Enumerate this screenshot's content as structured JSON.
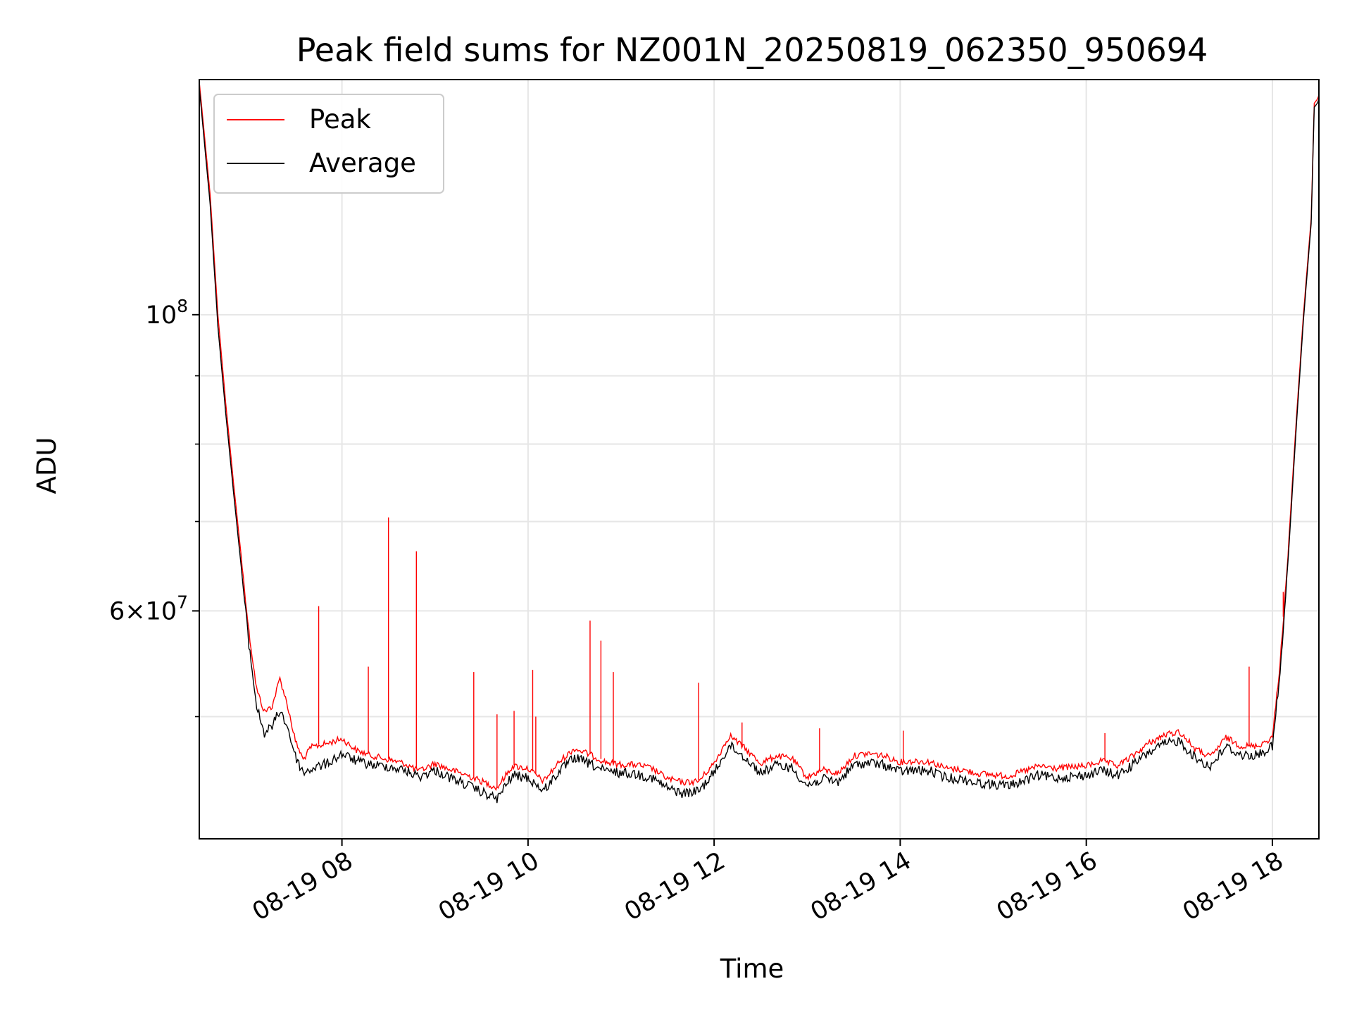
{
  "chart_data": {
    "type": "line",
    "title": "Peak field sums for NZ001N_20250819_062350_950694",
    "xlabel": "Time",
    "ylabel": "ADU",
    "y_scale": "log",
    "ylim": [
      40500000,
      150000000
    ],
    "xlim": [
      "2025-08-19 06:28",
      "2025-08-19 18:30"
    ],
    "grid": true,
    "legend_position": "upper left",
    "x_ticks": [
      {
        "value": "2025-08-19 08:00",
        "label": "08-19 08"
      },
      {
        "value": "2025-08-19 10:00",
        "label": "08-19 10"
      },
      {
        "value": "2025-08-19 12:00",
        "label": "08-19 12"
      },
      {
        "value": "2025-08-19 14:00",
        "label": "08-19 14"
      },
      {
        "value": "2025-08-19 16:00",
        "label": "08-19 16"
      },
      {
        "value": "2025-08-19 18:00",
        "label": "08-19 18"
      }
    ],
    "y_major_ticks": [
      {
        "value": 100000000,
        "label": "10^8"
      },
      {
        "value": 60000000,
        "label": "6×10^7"
      }
    ],
    "y_minor_ticks": [
      50000000,
      70000000,
      80000000,
      90000000
    ],
    "series": [
      {
        "name": "Peak",
        "color": "#ff0000",
        "points": [
          [
            "2025-08-19 06:28",
            149500000
          ],
          [
            "2025-08-19 06:35",
            123000000
          ],
          [
            "2025-08-19 06:40",
            100000000
          ],
          [
            "2025-08-19 06:45",
            86000000
          ],
          [
            "2025-08-19 06:50",
            75000000
          ],
          [
            "2025-08-19 06:55",
            66000000
          ],
          [
            "2025-08-19 07:00",
            58000000
          ],
          [
            "2025-08-19 07:05",
            52500000
          ],
          [
            "2025-08-19 07:10",
            50500000
          ],
          [
            "2025-08-19 07:15",
            51000000
          ],
          [
            "2025-08-19 07:20",
            53500000
          ],
          [
            "2025-08-19 07:25",
            51000000
          ],
          [
            "2025-08-19 07:30",
            48000000
          ],
          [
            "2025-08-19 07:35",
            46500000
          ],
          [
            "2025-08-19 07:40",
            47500000
          ],
          [
            "2025-08-19 07:50",
            47800000
          ],
          [
            "2025-08-19 08:00",
            48200000
          ],
          [
            "2025-08-19 08:10",
            47200000
          ],
          [
            "2025-08-19 08:20",
            46800000
          ],
          [
            "2025-08-19 08:30",
            46500000
          ],
          [
            "2025-08-19 08:40",
            46200000
          ],
          [
            "2025-08-19 08:50",
            45600000
          ],
          [
            "2025-08-19 09:00",
            46200000
          ],
          [
            "2025-08-19 09:10",
            45700000
          ],
          [
            "2025-08-19 09:20",
            45300000
          ],
          [
            "2025-08-19 09:30",
            44800000
          ],
          [
            "2025-08-19 09:40",
            44300000
          ],
          [
            "2025-08-19 09:50",
            46000000
          ],
          [
            "2025-08-19 10:00",
            45800000
          ],
          [
            "2025-08-19 10:10",
            44800000
          ],
          [
            "2025-08-19 10:20",
            46300000
          ],
          [
            "2025-08-19 10:30",
            47400000
          ],
          [
            "2025-08-19 10:40",
            46900000
          ],
          [
            "2025-08-19 10:50",
            46300000
          ],
          [
            "2025-08-19 11:00",
            46100000
          ],
          [
            "2025-08-19 11:10",
            46100000
          ],
          [
            "2025-08-19 11:20",
            45800000
          ],
          [
            "2025-08-19 11:30",
            45000000
          ],
          [
            "2025-08-19 11:40",
            44700000
          ],
          [
            "2025-08-19 11:50",
            44800000
          ],
          [
            "2025-08-19 12:00",
            46200000
          ],
          [
            "2025-08-19 12:10",
            48500000
          ],
          [
            "2025-08-19 12:20",
            47400000
          ],
          [
            "2025-08-19 12:30",
            46200000
          ],
          [
            "2025-08-19 12:40",
            46800000
          ],
          [
            "2025-08-19 12:50",
            46600000
          ],
          [
            "2025-08-19 13:00",
            45100000
          ],
          [
            "2025-08-19 13:10",
            45700000
          ],
          [
            "2025-08-19 13:20",
            45400000
          ],
          [
            "2025-08-19 13:30",
            46800000
          ],
          [
            "2025-08-19 13:40",
            47000000
          ],
          [
            "2025-08-19 13:50",
            46800000
          ],
          [
            "2025-08-19 14:00",
            46300000
          ],
          [
            "2025-08-19 14:10",
            46400000
          ],
          [
            "2025-08-19 14:20",
            46300000
          ],
          [
            "2025-08-19 14:30",
            45800000
          ],
          [
            "2025-08-19 14:40",
            45700000
          ],
          [
            "2025-08-19 14:50",
            45400000
          ],
          [
            "2025-08-19 15:00",
            45300000
          ],
          [
            "2025-08-19 15:10",
            45200000
          ],
          [
            "2025-08-19 15:20",
            45600000
          ],
          [
            "2025-08-19 15:30",
            46000000
          ],
          [
            "2025-08-19 15:40",
            45800000
          ],
          [
            "2025-08-19 15:50",
            45900000
          ],
          [
            "2025-08-19 16:00",
            46000000
          ],
          [
            "2025-08-19 16:10",
            46400000
          ],
          [
            "2025-08-19 16:20",
            46000000
          ],
          [
            "2025-08-19 16:30",
            46800000
          ],
          [
            "2025-08-19 16:40",
            47800000
          ],
          [
            "2025-08-19 16:50",
            48500000
          ],
          [
            "2025-08-19 17:00",
            48800000
          ],
          [
            "2025-08-19 17:10",
            47400000
          ],
          [
            "2025-08-19 17:20",
            46700000
          ],
          [
            "2025-08-19 17:30",
            48300000
          ],
          [
            "2025-08-19 17:40",
            47600000
          ],
          [
            "2025-08-19 17:50",
            47600000
          ],
          [
            "2025-08-19 18:00",
            48300000
          ],
          [
            "2025-08-19 18:05",
            55000000
          ],
          [
            "2025-08-19 18:10",
            66000000
          ],
          [
            "2025-08-19 18:15",
            82000000
          ],
          [
            "2025-08-19 18:20",
            100000000
          ],
          [
            "2025-08-19 18:25",
            118000000
          ],
          [
            "2025-08-19 18:27",
            144000000
          ],
          [
            "2025-08-19 18:29",
            145000000
          ],
          [
            "2025-08-19 18:30",
            146000000
          ],
          [
            "2025-08-19 18:30",
            129000000
          ]
        ]
      },
      {
        "name": "Average",
        "color": "#000000",
        "points": [
          [
            "2025-08-19 06:28",
            148000000
          ],
          [
            "2025-08-19 06:35",
            121000000
          ],
          [
            "2025-08-19 06:40",
            98000000
          ],
          [
            "2025-08-19 06:45",
            84500000
          ],
          [
            "2025-08-19 06:50",
            73800000
          ],
          [
            "2025-08-19 06:55",
            64800000
          ],
          [
            "2025-08-19 07:00",
            56800000
          ],
          [
            "2025-08-19 07:05",
            51000000
          ],
          [
            "2025-08-19 07:10",
            48700000
          ],
          [
            "2025-08-19 07:15",
            49300000
          ],
          [
            "2025-08-19 07:20",
            50700000
          ],
          [
            "2025-08-19 07:25",
            49200000
          ],
          [
            "2025-08-19 07:30",
            46800000
          ],
          [
            "2025-08-19 07:35",
            45500000
          ],
          [
            "2025-08-19 07:40",
            45800000
          ],
          [
            "2025-08-19 07:50",
            46200000
          ],
          [
            "2025-08-19 08:00",
            47000000
          ],
          [
            "2025-08-19 08:10",
            46400000
          ],
          [
            "2025-08-19 08:20",
            46100000
          ],
          [
            "2025-08-19 08:30",
            46000000
          ],
          [
            "2025-08-19 08:40",
            45700000
          ],
          [
            "2025-08-19 08:50",
            45200000
          ],
          [
            "2025-08-19 09:00",
            45700000
          ],
          [
            "2025-08-19 09:10",
            45100000
          ],
          [
            "2025-08-19 09:20",
            44600000
          ],
          [
            "2025-08-19 09:30",
            44000000
          ],
          [
            "2025-08-19 09:40",
            43500000
          ],
          [
            "2025-08-19 09:50",
            45300000
          ],
          [
            "2025-08-19 10:00",
            45100000
          ],
          [
            "2025-08-19 10:10",
            44100000
          ],
          [
            "2025-08-19 10:20",
            45600000
          ],
          [
            "2025-08-19 10:30",
            46700000
          ],
          [
            "2025-08-19 10:40",
            46200000
          ],
          [
            "2025-08-19 10:50",
            45600000
          ],
          [
            "2025-08-19 11:00",
            45500000
          ],
          [
            "2025-08-19 11:10",
            45400000
          ],
          [
            "2025-08-19 11:20",
            45100000
          ],
          [
            "2025-08-19 11:30",
            44300000
          ],
          [
            "2025-08-19 11:40",
            43900000
          ],
          [
            "2025-08-19 11:50",
            44100000
          ],
          [
            "2025-08-19 12:00",
            45500000
          ],
          [
            "2025-08-19 12:10",
            47700000
          ],
          [
            "2025-08-19 12:20",
            46700000
          ],
          [
            "2025-08-19 12:30",
            45500000
          ],
          [
            "2025-08-19 12:40",
            46100000
          ],
          [
            "2025-08-19 12:50",
            45900000
          ],
          [
            "2025-08-19 13:00",
            44500000
          ],
          [
            "2025-08-19 13:10",
            45000000
          ],
          [
            "2025-08-19 13:20",
            44800000
          ],
          [
            "2025-08-19 13:30",
            46100000
          ],
          [
            "2025-08-19 13:40",
            46300000
          ],
          [
            "2025-08-19 13:50",
            46100000
          ],
          [
            "2025-08-19 14:00",
            45600000
          ],
          [
            "2025-08-19 14:10",
            45700000
          ],
          [
            "2025-08-19 14:20",
            45600000
          ],
          [
            "2025-08-19 14:30",
            45100000
          ],
          [
            "2025-08-19 14:40",
            45000000
          ],
          [
            "2025-08-19 14:50",
            44700000
          ],
          [
            "2025-08-19 15:00",
            44600000
          ],
          [
            "2025-08-19 15:10",
            44500000
          ],
          [
            "2025-08-19 15:20",
            44900000
          ],
          [
            "2025-08-19 15:30",
            45300000
          ],
          [
            "2025-08-19 15:40",
            45100000
          ],
          [
            "2025-08-19 15:50",
            45200000
          ],
          [
            "2025-08-19 16:00",
            45300000
          ],
          [
            "2025-08-19 16:10",
            45700000
          ],
          [
            "2025-08-19 16:20",
            45300000
          ],
          [
            "2025-08-19 16:30",
            46100000
          ],
          [
            "2025-08-19 16:40",
            47100000
          ],
          [
            "2025-08-19 16:50",
            47800000
          ],
          [
            "2025-08-19 17:00",
            48100000
          ],
          [
            "2025-08-19 17:10",
            46700000
          ],
          [
            "2025-08-19 17:20",
            46000000
          ],
          [
            "2025-08-19 17:30",
            47600000
          ],
          [
            "2025-08-19 17:40",
            46900000
          ],
          [
            "2025-08-19 17:50",
            46900000
          ],
          [
            "2025-08-19 18:00",
            47600000
          ],
          [
            "2025-08-19 18:05",
            54000000
          ],
          [
            "2025-08-19 18:10",
            65000000
          ],
          [
            "2025-08-19 18:15",
            81000000
          ],
          [
            "2025-08-19 18:20",
            99000000
          ],
          [
            "2025-08-19 18:25",
            117000000
          ],
          [
            "2025-08-19 18:27",
            143000000
          ],
          [
            "2025-08-19 18:29",
            144000000
          ],
          [
            "2025-08-19 18:30",
            145000000
          ],
          [
            "2025-08-19 18:30",
            127000000
          ]
        ]
      }
    ],
    "peak_spikes": [
      [
        "2025-08-19 07:45",
        60500000
      ],
      [
        "2025-08-19 08:17",
        54500000
      ],
      [
        "2025-08-19 08:30",
        70500000
      ],
      [
        "2025-08-19 08:48",
        66500000
      ],
      [
        "2025-08-19 09:25",
        54000000
      ],
      [
        "2025-08-19 09:40",
        50200000
      ],
      [
        "2025-08-19 09:51",
        50500000
      ],
      [
        "2025-08-19 10:03",
        54200000
      ],
      [
        "2025-08-19 10:05",
        50000000
      ],
      [
        "2025-08-19 10:40",
        59000000
      ],
      [
        "2025-08-19 10:47",
        57000000
      ],
      [
        "2025-08-19 10:55",
        54000000
      ],
      [
        "2025-08-19 11:50",
        53000000
      ],
      [
        "2025-08-19 12:18",
        49500000
      ],
      [
        "2025-08-19 13:08",
        49000000
      ],
      [
        "2025-08-19 14:02",
        48800000
      ],
      [
        "2025-08-19 16:12",
        48600000
      ],
      [
        "2025-08-19 16:48",
        48000000
      ],
      [
        "2025-08-19 17:45",
        54500000
      ],
      [
        "2025-08-19 18:07",
        62000000
      ]
    ]
  }
}
